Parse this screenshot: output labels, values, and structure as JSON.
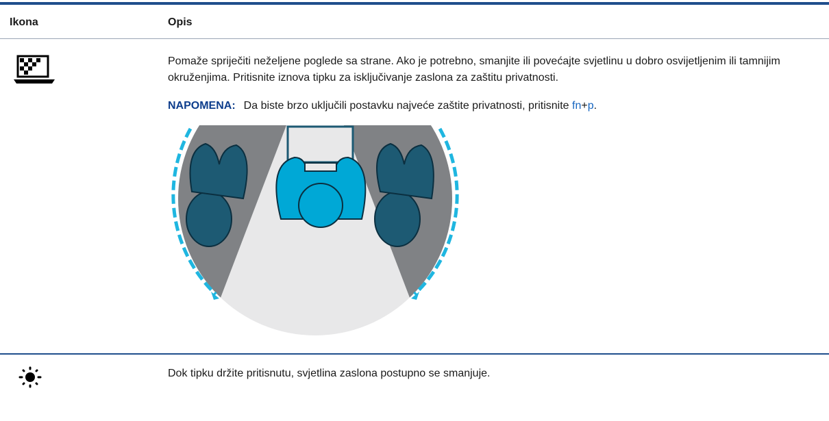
{
  "header": {
    "icon_col": "Ikona",
    "desc_col": "Opis"
  },
  "rows": [
    {
      "description": "Pomaže spriječiti neželjene poglede sa strane. Ako je potrebno, smanjite ili povećajte svjetlinu u dobro osvijetljenim ili tamnijim okruženjima. Pritisnite iznova tipku za isključivanje zaslona za zaštitu privatnosti.",
      "note": {
        "label": "NAPOMENA:",
        "text": "Da biste brzo uključili postavku najveće zaštite privatnosti, pritisnite",
        "key1": "fn",
        "plus": "+",
        "key2": "p",
        "end": "."
      }
    },
    {
      "description": "Dok tipku držite pritisnutu, svjetlina zaslona postupno se smanjuje."
    }
  ]
}
